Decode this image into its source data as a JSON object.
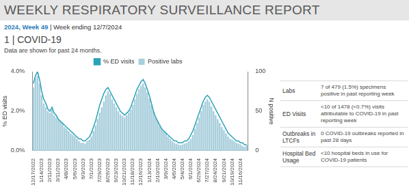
{
  "header": {
    "title": "WEEKLY RESPIRATORY SURVEILLANCE REPORT",
    "year_week": "2024, Week 49",
    "week_ending": "| Week ending 12/7/2024"
  },
  "section": {
    "heading": "1 | COVID-19",
    "note": "Data are shown for past 24 months."
  },
  "chart_data": {
    "type": "bar",
    "y_label": "% ED visits",
    "y2_label": "N positive",
    "categories": [
      "12/17/2022",
      null,
      null,
      null,
      "1/14/2023",
      null,
      null,
      null,
      "2/11/2023",
      null,
      null,
      null,
      "3/11/2023",
      null,
      null,
      null,
      "4/8/2023",
      null,
      null,
      null,
      "5/6/2023",
      null,
      null,
      null,
      "6/3/2023",
      null,
      null,
      null,
      "7/1/2023",
      null,
      null,
      null,
      "7/29/2023",
      null,
      null,
      null,
      "8/26/2023",
      null,
      null,
      null,
      "9/23/2023",
      null,
      null,
      null,
      "10/21/2023",
      null,
      null,
      null,
      "11/18/2023",
      null,
      null,
      null,
      "12/16/2023",
      null,
      null,
      null,
      "1/13/2024",
      null,
      null,
      null,
      "2/10/2024",
      null,
      null,
      null,
      "3/9/2024",
      null,
      null,
      null,
      "4/6/2024",
      null,
      null,
      null,
      "5/4/2024",
      null,
      null,
      null,
      "6/1/2024",
      null,
      null,
      null,
      "6/29/2024",
      null,
      null,
      null,
      "7/27/2024",
      null,
      null,
      null,
      "8/24/2024",
      null,
      null,
      null,
      "9/21/2024",
      null,
      null,
      null,
      "10/19/2024",
      null,
      null,
      null,
      "11/16/2024",
      null,
      null,
      null
    ],
    "series": [
      {
        "name": "% ED visits",
        "type": "line",
        "color": "#2aa3b8",
        "values": [
          3.4,
          3.8,
          4.0,
          3.6,
          3.0,
          2.6,
          2.4,
          2.1,
          2.0,
          2.2,
          1.9,
          1.8,
          1.6,
          1.5,
          1.4,
          1.3,
          1.2,
          1.1,
          1.0,
          0.9,
          0.8,
          0.7,
          0.6,
          0.6,
          0.5,
          0.5,
          0.6,
          0.7,
          0.9,
          1.2,
          1.5,
          1.9,
          2.3,
          2.6,
          2.9,
          3.1,
          3.2,
          3.0,
          2.8,
          2.6,
          2.4,
          2.2,
          2.0,
          1.9,
          1.8,
          1.9,
          2.0,
          2.2,
          2.5,
          2.8,
          3.1,
          3.3,
          3.5,
          3.6,
          3.4,
          3.1,
          2.8,
          2.4,
          2.0,
          1.7,
          1.5,
          1.3,
          1.1,
          1.0,
          0.9,
          0.8,
          0.7,
          0.6,
          0.5,
          0.5,
          0.4,
          0.4,
          0.4,
          0.5,
          0.5,
          0.6,
          0.8,
          1.0,
          1.3,
          1.6,
          1.9,
          2.2,
          2.5,
          2.7,
          2.8,
          2.7,
          2.5,
          2.3,
          2.1,
          1.9,
          1.7,
          1.5,
          1.3,
          1.1,
          0.9,
          0.8,
          0.7,
          0.6,
          0.5,
          0.5,
          0.4,
          0.4,
          0.3,
          0.3
        ]
      },
      {
        "name": "Positive labs",
        "type": "bar",
        "axis": "y2",
        "color": "#a9cfdc",
        "values": [
          80,
          92,
          95,
          85,
          70,
          60,
          55,
          50,
          48,
          52,
          45,
          42,
          40,
          38,
          35,
          30,
          28,
          25,
          22,
          20,
          18,
          15,
          12,
          10,
          10,
          9,
          12,
          14,
          18,
          25,
          32,
          40,
          48,
          55,
          62,
          70,
          75,
          72,
          65,
          60,
          55,
          50,
          46,
          44,
          42,
          45,
          48,
          52,
          58,
          65,
          72,
          78,
          82,
          85,
          80,
          74,
          66,
          58,
          50,
          42,
          38,
          32,
          28,
          25,
          22,
          18,
          15,
          12,
          10,
          9,
          8,
          7,
          8,
          9,
          10,
          12,
          15,
          20,
          28,
          35,
          42,
          50,
          58,
          62,
          65,
          62,
          56,
          50,
          45,
          40,
          35,
          30,
          26,
          22,
          18,
          15,
          14,
          12,
          10,
          9,
          8,
          6,
          5,
          7
        ]
      }
    ],
    "ylim": [
      0,
      4
    ],
    "yticks": [
      {
        "value": 0,
        "label": "0.0%"
      },
      {
        "value": 2,
        "label": "2.0%"
      },
      {
        "value": 4,
        "label": "4.0%"
      }
    ],
    "y2lim": [
      0,
      100
    ],
    "y2ticks": [
      0,
      50,
      100
    ],
    "grid": false,
    "legend": "top"
  },
  "table": {
    "rows": [
      [
        "Labs",
        "7 of 479 (1.5%) specimens positive in past reporting week"
      ],
      [
        "ED Visits",
        "<10 of 1478 (<0.7%) visits attributable to COVID-19 in past reporting week"
      ],
      [
        "Outbreaks in LTCFs",
        "0 COVID-19 outbreaks reported in past 28 days"
      ],
      [
        "Hospital Bed Usage",
        "<10 hospital beds in use for COVID-19 patients"
      ]
    ]
  }
}
